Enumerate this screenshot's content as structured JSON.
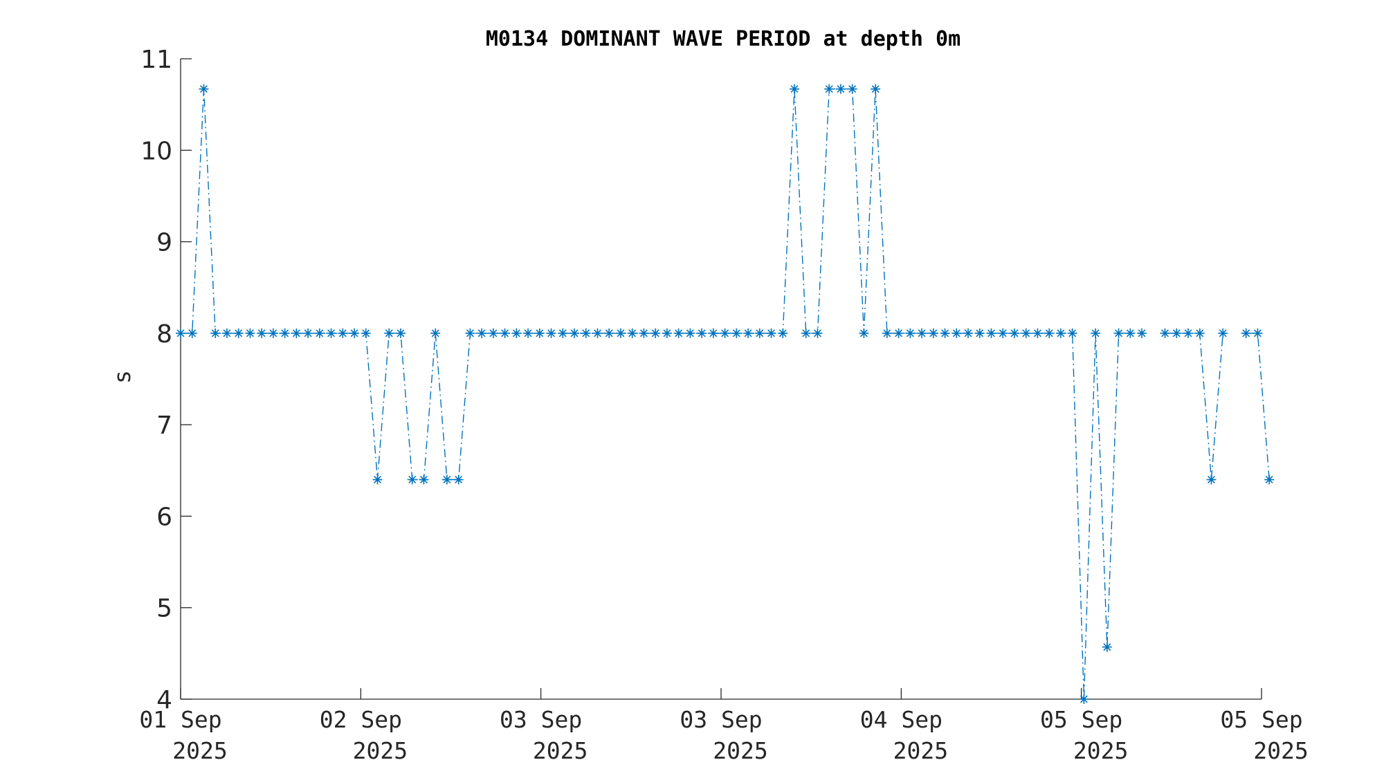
{
  "chart_data": {
    "type": "line",
    "title": "M0134 DOMINANT WAVE PERIOD at depth 0m",
    "xlabel": "",
    "ylabel": "s",
    "x_unit": "hours since 01 Sep 2025 00:00",
    "xlim": [
      0,
      112
    ],
    "ylim": [
      4,
      11
    ],
    "yticks": [
      4,
      5,
      6,
      7,
      8,
      9,
      10,
      11
    ],
    "xticks": [
      {
        "x": 0,
        "line1": "01 Sep",
        "line2": "2025"
      },
      {
        "x": 18.67,
        "line1": "02 Sep",
        "line2": "2025"
      },
      {
        "x": 37.33,
        "line1": "03 Sep",
        "line2": "2025"
      },
      {
        "x": 56,
        "line1": "03 Sep",
        "line2": "2025"
      },
      {
        "x": 74.67,
        "line1": "04 Sep",
        "line2": "2025"
      },
      {
        "x": 93.33,
        "line1": "05 Sep",
        "line2": "2025"
      },
      {
        "x": 112,
        "line1": "05 Sep",
        "line2": "2025"
      }
    ],
    "grid": false,
    "color": "#0072BD",
    "marker": "asterisk",
    "line_style": "dash-dot",
    "series": [
      {
        "segments": [
          [
            [
              0,
              8
            ],
            [
              1.2,
              8
            ],
            [
              2.4,
              10.67
            ],
            [
              3.6,
              8
            ],
            [
              4.8,
              8
            ],
            [
              6,
              8
            ],
            [
              7.2,
              8
            ],
            [
              8.4,
              8
            ],
            [
              9.6,
              8
            ],
            [
              10.8,
              8
            ],
            [
              12,
              8
            ],
            [
              13.2,
              8
            ],
            [
              14.4,
              8
            ],
            [
              15.6,
              8
            ],
            [
              16.8,
              8
            ],
            [
              18,
              8
            ],
            [
              19.2,
              8
            ],
            [
              20.4,
              6.4
            ],
            [
              21.6,
              8
            ],
            [
              22.8,
              8
            ],
            [
              24,
              6.4
            ],
            [
              25.2,
              6.4
            ],
            [
              26.4,
              8
            ],
            [
              27.6,
              6.4
            ],
            [
              28.8,
              6.4
            ],
            [
              30,
              8
            ],
            [
              31.2,
              8
            ],
            [
              32.4,
              8
            ],
            [
              33.6,
              8
            ],
            [
              34.8,
              8
            ],
            [
              36,
              8
            ],
            [
              37.2,
              8
            ],
            [
              38.4,
              8
            ],
            [
              39.6,
              8
            ],
            [
              40.8,
              8
            ],
            [
              42,
              8
            ],
            [
              43.2,
              8
            ],
            [
              44.4,
              8
            ],
            [
              45.6,
              8
            ],
            [
              46.8,
              8
            ],
            [
              48,
              8
            ],
            [
              49.2,
              8
            ],
            [
              50.4,
              8
            ],
            [
              51.6,
              8
            ],
            [
              52.8,
              8
            ],
            [
              54,
              8
            ],
            [
              55.2,
              8
            ],
            [
              56.4,
              8
            ],
            [
              57.6,
              8
            ],
            [
              58.8,
              8
            ],
            [
              60,
              8
            ],
            [
              61.2,
              8
            ],
            [
              62.4,
              8
            ],
            [
              63.6,
              10.67
            ],
            [
              64.8,
              8
            ],
            [
              66,
              8
            ],
            [
              67.2,
              10.67
            ],
            [
              68.4,
              10.67
            ],
            [
              69.6,
              10.67
            ],
            [
              70.8,
              8
            ],
            [
              72,
              10.67
            ],
            [
              73.2,
              8
            ],
            [
              74.4,
              8
            ],
            [
              75.6,
              8
            ],
            [
              76.8,
              8
            ],
            [
              78,
              8
            ],
            [
              79.2,
              8
            ],
            [
              80.4,
              8
            ],
            [
              81.6,
              8
            ],
            [
              82.8,
              8
            ],
            [
              84,
              8
            ],
            [
              85.2,
              8
            ],
            [
              86.4,
              8
            ],
            [
              87.6,
              8
            ],
            [
              88.8,
              8
            ],
            [
              90,
              8
            ],
            [
              91.2,
              8
            ],
            [
              92.4,
              8
            ],
            [
              93.6,
              4
            ],
            [
              94.8,
              8
            ],
            [
              96,
              4.57
            ],
            [
              97.2,
              8
            ],
            [
              98.4,
              8
            ],
            [
              99.6,
              8
            ]
          ],
          [
            [
              102,
              8
            ],
            [
              103.2,
              8
            ],
            [
              104.4,
              8
            ],
            [
              105.6,
              8
            ],
            [
              106.8,
              6.4
            ],
            [
              108,
              8
            ]
          ],
          [
            [
              110.4,
              8
            ],
            [
              111.6,
              8
            ],
            [
              112.8,
              6.4
            ]
          ]
        ]
      }
    ]
  }
}
